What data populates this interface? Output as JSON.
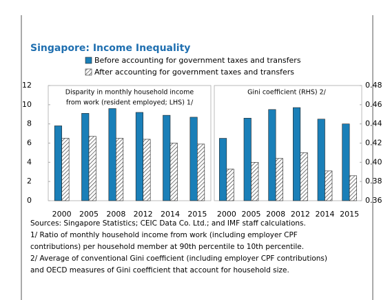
{
  "title": "Singapore: Income Inequality",
  "notes": [
    "Sources: Singapore Statistics; CEIC Data Co. Ltd.; and IMF staff calculations.",
    "1/ Ratio of monthly household income from work (including employer CPF",
    "contributions) per household member at 90th percentile to 10th percentile.",
    "2/ Average of conventional Gini coefficient (including employer CPF contributions)",
    "and OECD measures of Gini coefficient that account for household size."
  ],
  "chart_data": [
    {
      "type": "bar",
      "axis_side": "left",
      "annotation": [
        "Disparity in monthly household income",
        "from work (resident employed; LHS) 1/"
      ],
      "categories": [
        "2000",
        "2005",
        "2008",
        "2012",
        "2014",
        "2015"
      ],
      "series": [
        {
          "name": "Before accounting for government taxes and transfers",
          "color": "#1a7fb8",
          "values": [
            7.8,
            9.1,
            9.6,
            9.2,
            8.9,
            8.7
          ]
        },
        {
          "name": "After accounting for government taxes and transfers",
          "color": "#333333",
          "hatch": true,
          "values": [
            6.5,
            6.7,
            6.5,
            6.4,
            6.0,
            5.9
          ]
        }
      ],
      "ylim": [
        0,
        12
      ],
      "yticks": [
        0,
        2,
        4,
        6,
        8,
        10,
        12
      ]
    },
    {
      "type": "bar",
      "axis_side": "right",
      "annotation": [
        "Gini coefficient (RHS) 2/"
      ],
      "categories": [
        "2000",
        "2005",
        "2008",
        "2012",
        "2014",
        "2015"
      ],
      "series": [
        {
          "color": "#1a7fb8",
          "values": [
            0.425,
            0.446,
            0.455,
            0.457,
            0.445,
            0.44
          ]
        },
        {
          "color": "#333333",
          "hatch": true,
          "values": [
            0.393,
            0.4,
            0.404,
            0.41,
            0.391,
            0.386
          ]
        }
      ],
      "ylim": [
        0.36,
        0.48
      ],
      "yticks": [
        0.36,
        0.38,
        {
          "value": 0.4,
          "label": "0.40"
        },
        0.42,
        0.44,
        0.46,
        0.48
      ]
    }
  ]
}
